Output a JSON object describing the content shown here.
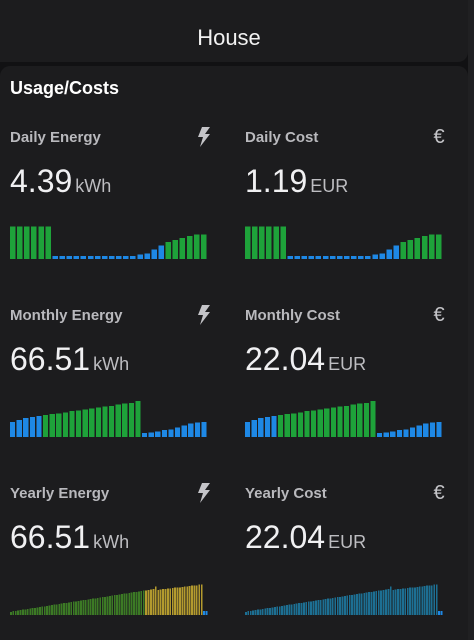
{
  "header": {
    "title": "House"
  },
  "card": {
    "title": "Usage/Costs"
  },
  "colors": {
    "green": "#1ea23a",
    "blue": "#1e88e5",
    "gold": "#b39a2e",
    "teal": "#1d6f93",
    "olive": "#3c7a25"
  },
  "tiles": [
    {
      "name": "Daily Energy",
      "value": "4.39",
      "unit": "kWh",
      "icon": "lightning-bolt-icon",
      "bars": {
        "style": "solid",
        "levels": [
          0.85,
          0.85,
          0.85,
          0.85,
          0.85,
          0.85,
          0.08,
          0.08,
          0.08,
          0.08,
          0.08,
          0.08,
          0.08,
          0.08,
          0.08,
          0.08,
          0.08,
          0.08,
          0.12,
          0.15,
          0.25,
          0.35,
          0.45,
          0.5,
          0.55,
          0.6,
          0.65,
          0.65
        ],
        "colors": [
          "green",
          "green",
          "green",
          "green",
          "green",
          "green",
          "blue",
          "blue",
          "blue",
          "blue",
          "blue",
          "blue",
          "blue",
          "blue",
          "blue",
          "blue",
          "blue",
          "blue",
          "blue",
          "blue",
          "blue",
          "blue",
          "green",
          "green",
          "green",
          "green",
          "green",
          "green"
        ]
      }
    },
    {
      "name": "Daily Cost",
      "value": "1.19",
      "unit": "EUR",
      "icon": "euro-icon",
      "bars": {
        "style": "solid",
        "levels": [
          0.85,
          0.85,
          0.85,
          0.85,
          0.85,
          0.85,
          0.08,
          0.08,
          0.08,
          0.08,
          0.08,
          0.08,
          0.08,
          0.08,
          0.08,
          0.08,
          0.08,
          0.08,
          0.12,
          0.15,
          0.25,
          0.35,
          0.45,
          0.5,
          0.55,
          0.6,
          0.65,
          0.65
        ],
        "colors": [
          "green",
          "green",
          "green",
          "green",
          "green",
          "green",
          "blue",
          "blue",
          "blue",
          "blue",
          "blue",
          "blue",
          "blue",
          "blue",
          "blue",
          "blue",
          "blue",
          "blue",
          "blue",
          "blue",
          "blue",
          "blue",
          "green",
          "green",
          "green",
          "green",
          "green",
          "green"
        ]
      }
    },
    {
      "name": "Monthly Energy",
      "value": "66.51",
      "unit": "kWh",
      "icon": "lightning-bolt-icon",
      "bars": {
        "style": "solid",
        "levels": [
          0.4,
          0.45,
          0.5,
          0.52,
          0.55,
          0.58,
          0.6,
          0.62,
          0.65,
          0.68,
          0.7,
          0.72,
          0.75,
          0.78,
          0.8,
          0.82,
          0.85,
          0.88,
          0.9,
          0.95,
          0.1,
          0.12,
          0.15,
          0.18,
          0.2,
          0.25,
          0.3,
          0.35,
          0.38,
          0.4
        ],
        "colors": [
          "blue",
          "blue",
          "blue",
          "blue",
          "blue",
          "green",
          "green",
          "green",
          "green",
          "green",
          "green",
          "green",
          "green",
          "green",
          "green",
          "green",
          "green",
          "green",
          "green",
          "green",
          "blue",
          "blue",
          "blue",
          "blue",
          "blue",
          "blue",
          "blue",
          "blue",
          "blue",
          "blue"
        ]
      }
    },
    {
      "name": "Monthly Cost",
      "value": "22.04",
      "unit": "EUR",
      "icon": "euro-icon",
      "bars": {
        "style": "solid",
        "levels": [
          0.4,
          0.45,
          0.5,
          0.52,
          0.55,
          0.58,
          0.6,
          0.62,
          0.65,
          0.68,
          0.7,
          0.72,
          0.75,
          0.78,
          0.8,
          0.82,
          0.85,
          0.88,
          0.9,
          0.95,
          0.1,
          0.12,
          0.15,
          0.18,
          0.2,
          0.25,
          0.3,
          0.35,
          0.38,
          0.4
        ],
        "colors": [
          "blue",
          "blue",
          "blue",
          "blue",
          "blue",
          "green",
          "green",
          "green",
          "green",
          "green",
          "green",
          "green",
          "green",
          "green",
          "green",
          "green",
          "green",
          "green",
          "green",
          "green",
          "blue",
          "blue",
          "blue",
          "blue",
          "blue",
          "blue",
          "blue",
          "blue",
          "blue",
          "blue"
        ]
      }
    },
    {
      "name": "Yearly Energy",
      "value": "66.51",
      "unit": "kWh",
      "icon": "lightning-bolt-icon",
      "bars": {
        "style": "thin",
        "levels": [
          0.08,
          0.1,
          0.11,
          0.12,
          0.13,
          0.14,
          0.15,
          0.16,
          0.17,
          0.18,
          0.19,
          0.2,
          0.21,
          0.22,
          0.23,
          0.24,
          0.25,
          0.26,
          0.27,
          0.28,
          0.29,
          0.3,
          0.31,
          0.32,
          0.33,
          0.34,
          0.35,
          0.36,
          0.37,
          0.38,
          0.39,
          0.4,
          0.41,
          0.42,
          0.43,
          0.44,
          0.45,
          0.46,
          0.47,
          0.48,
          0.49,
          0.5,
          0.51,
          0.52,
          0.53,
          0.54,
          0.55,
          0.56,
          0.57,
          0.58,
          0.59,
          0.6,
          0.61,
          0.62,
          0.63,
          0.64,
          0.65,
          0.66,
          0.67,
          0.68,
          0.75,
          0.66,
          0.67,
          0.68,
          0.69,
          0.7,
          0.7,
          0.71,
          0.72,
          0.72,
          0.73,
          0.74,
          0.75,
          0.75,
          0.76,
          0.77,
          0.78,
          0.78,
          0.8,
          0.8,
          0.1,
          0.1
        ],
        "colors": [
          "olive",
          "olive",
          "olive",
          "olive",
          "olive",
          "olive",
          "olive",
          "olive",
          "olive",
          "olive",
          "olive",
          "olive",
          "olive",
          "olive",
          "olive",
          "olive",
          "olive",
          "olive",
          "olive",
          "olive",
          "olive",
          "olive",
          "olive",
          "olive",
          "olive",
          "olive",
          "olive",
          "olive",
          "olive",
          "olive",
          "olive",
          "olive",
          "olive",
          "olive",
          "olive",
          "olive",
          "olive",
          "olive",
          "olive",
          "olive",
          "olive",
          "olive",
          "olive",
          "olive",
          "olive",
          "olive",
          "olive",
          "olive",
          "olive",
          "olive",
          "olive",
          "olive",
          "olive",
          "olive",
          "olive",
          "olive",
          "gold",
          "gold",
          "gold",
          "gold",
          "gold",
          "gold",
          "gold",
          "gold",
          "gold",
          "gold",
          "gold",
          "gold",
          "gold",
          "gold",
          "gold",
          "gold",
          "gold",
          "gold",
          "gold",
          "gold",
          "gold",
          "gold",
          "gold",
          "gold",
          "blue",
          "blue"
        ]
      }
    },
    {
      "name": "Yearly Cost",
      "value": "22.04",
      "unit": "EUR",
      "icon": "euro-icon",
      "bars": {
        "style": "thin",
        "levels": [
          0.08,
          0.1,
          0.11,
          0.12,
          0.13,
          0.14,
          0.15,
          0.16,
          0.17,
          0.18,
          0.19,
          0.2,
          0.21,
          0.22,
          0.23,
          0.24,
          0.25,
          0.26,
          0.27,
          0.28,
          0.29,
          0.3,
          0.31,
          0.32,
          0.33,
          0.34,
          0.35,
          0.36,
          0.37,
          0.38,
          0.39,
          0.4,
          0.41,
          0.42,
          0.43,
          0.44,
          0.45,
          0.46,
          0.47,
          0.48,
          0.49,
          0.5,
          0.51,
          0.52,
          0.53,
          0.54,
          0.55,
          0.56,
          0.57,
          0.58,
          0.59,
          0.6,
          0.61,
          0.62,
          0.63,
          0.64,
          0.65,
          0.66,
          0.67,
          0.68,
          0.75,
          0.66,
          0.67,
          0.68,
          0.69,
          0.7,
          0.7,
          0.71,
          0.72,
          0.72,
          0.73,
          0.74,
          0.75,
          0.75,
          0.76,
          0.77,
          0.78,
          0.78,
          0.8,
          0.8,
          0.1,
          0.1
        ],
        "colors": [
          "teal",
          "teal",
          "teal",
          "teal",
          "teal",
          "teal",
          "teal",
          "teal",
          "teal",
          "teal",
          "teal",
          "teal",
          "teal",
          "teal",
          "teal",
          "teal",
          "teal",
          "teal",
          "teal",
          "teal",
          "teal",
          "teal",
          "teal",
          "teal",
          "teal",
          "teal",
          "teal",
          "teal",
          "teal",
          "teal",
          "teal",
          "teal",
          "teal",
          "teal",
          "teal",
          "teal",
          "teal",
          "teal",
          "teal",
          "teal",
          "teal",
          "teal",
          "teal",
          "teal",
          "teal",
          "teal",
          "teal",
          "teal",
          "teal",
          "teal",
          "teal",
          "teal",
          "teal",
          "teal",
          "teal",
          "teal",
          "teal",
          "teal",
          "teal",
          "teal",
          "teal",
          "teal",
          "teal",
          "teal",
          "teal",
          "teal",
          "teal",
          "teal",
          "teal",
          "teal",
          "teal",
          "teal",
          "teal",
          "teal",
          "teal",
          "teal",
          "teal",
          "teal",
          "teal",
          "teal",
          "blue",
          "blue"
        ]
      }
    }
  ]
}
